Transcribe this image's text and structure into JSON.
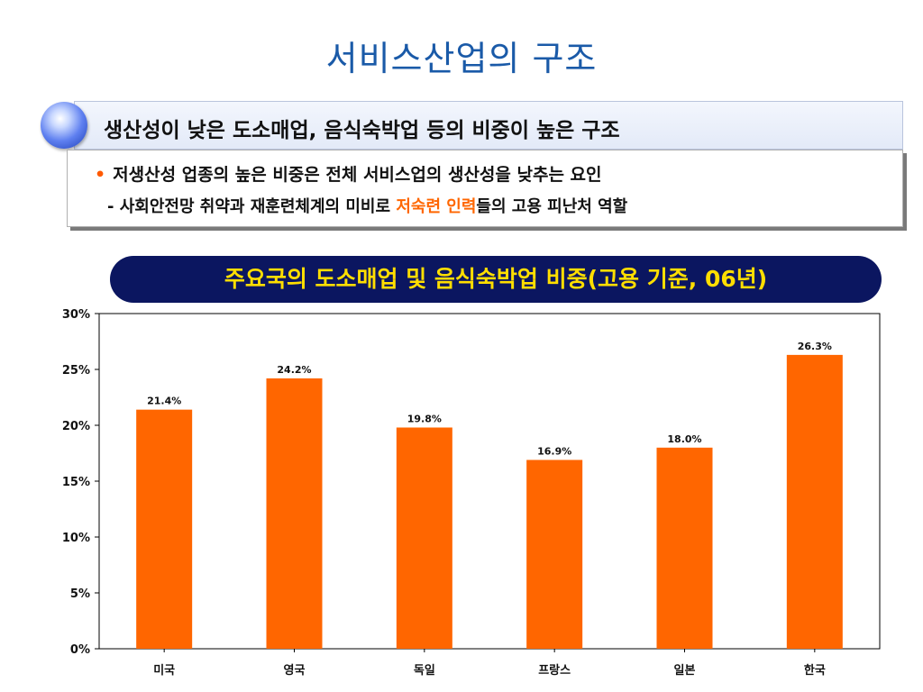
{
  "slide": {
    "title": "서비스산업의 구조",
    "headline": "생산성이 낮은 도소매업, 음식숙박업 등의 비중이 높은 구조",
    "bullet": "저생산성 업종의 높은 비중은 전체 서비스업의 생산성을 낮추는 요인",
    "sub_prefix": "- 사회안전망 취약과 재훈련체계의 미비로 ",
    "sub_highlight": "저숙련 인력",
    "sub_suffix": "들의 고용 피난처 역할",
    "highlight_color": "#ff6600"
  },
  "chart_data": {
    "type": "bar",
    "title": "주요국의 도소매업 및 음식숙박업 비중(고용 기준, 06년)",
    "categories": [
      "미국",
      "영국",
      "독일",
      "프랑스",
      "일본",
      "한국"
    ],
    "values": [
      21.4,
      24.2,
      19.8,
      16.9,
      18.0,
      26.3
    ],
    "value_labels": [
      "21.4%",
      "24.2%",
      "19.8%",
      "16.9%",
      "18.0%",
      "26.3%"
    ],
    "yticks": [
      "0%",
      "5%",
      "10%",
      "15%",
      "20%",
      "25%",
      "30%"
    ],
    "ylim": [
      0,
      30
    ],
    "xlabel": "",
    "ylabel": "",
    "bar_color": "#ff6600",
    "grid": false
  }
}
